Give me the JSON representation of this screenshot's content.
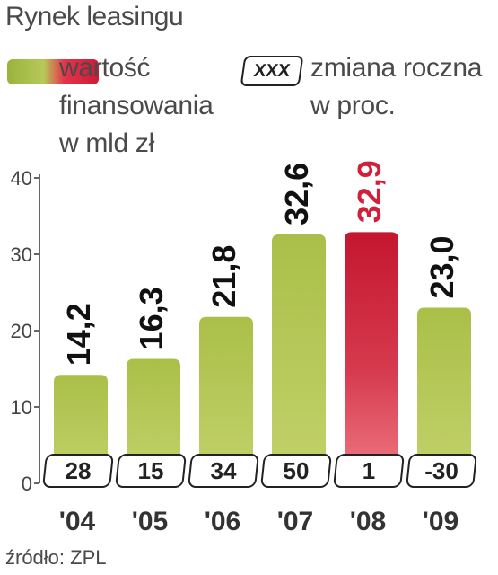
{
  "title": "Rynek leasingu",
  "legend": {
    "value_label_1": "wartość",
    "value_label_2": "finansowania",
    "value_label_3": "w mld zł",
    "change_box": "XXX",
    "change_label_1": "zmiana roczna",
    "change_label_2": "w proc."
  },
  "source": "źródło: ZPL",
  "colors": {
    "green": "#9ab33c",
    "red": "#d0203a",
    "highlight_text": "#d0203a",
    "text": "#222222"
  },
  "chart_data": {
    "type": "bar",
    "title": "Rynek leasingu",
    "categories": [
      "'04",
      "'05",
      "'06",
      "'07",
      "'08",
      "'09"
    ],
    "values": [
      14.2,
      16.3,
      21.8,
      32.6,
      32.9,
      23.0
    ],
    "value_labels": [
      "14,2",
      "16,3",
      "21,8",
      "32,6",
      "32,9",
      "23,0"
    ],
    "changes": [
      "28",
      "15",
      "34",
      "50",
      "1",
      "-30"
    ],
    "highlight_index": 4,
    "yticks": [
      "0",
      "10",
      "20",
      "30",
      "40"
    ],
    "ylim": [
      0,
      40
    ],
    "grid": false
  }
}
